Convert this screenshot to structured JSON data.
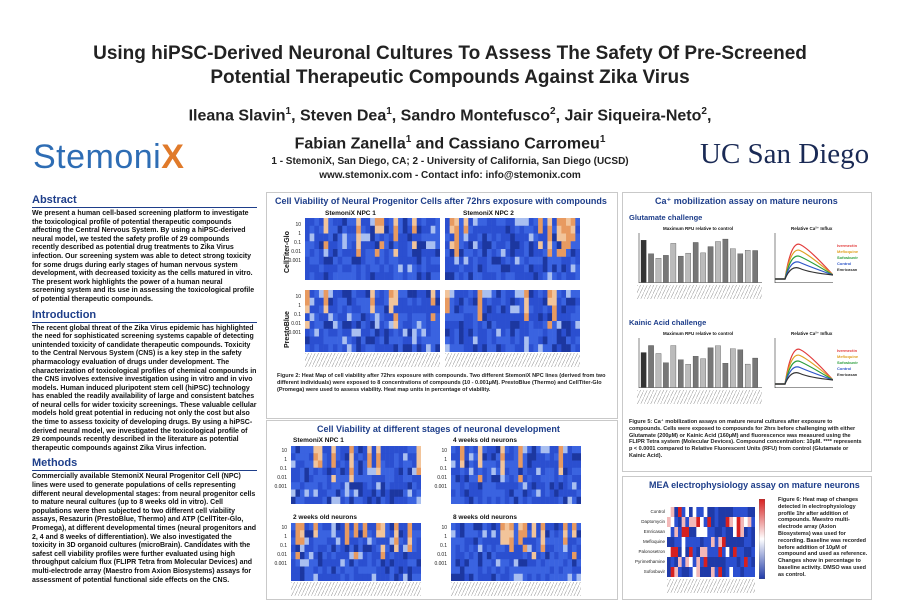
{
  "poster": {
    "title_line1": "Using hiPSC-Derived Neuronal Cultures To Assess The Safety Of Pre-Screened",
    "title_line2": "Potential Therapeutic Compounds Against Zika Virus",
    "authors_line1": [
      "Ileana Slavin",
      "1",
      ", Steven Dea",
      "1",
      ", Sandro Montefusco",
      "2",
      ", Jair Siqueira-Neto",
      "2",
      ","
    ],
    "authors_line2": [
      "Fabian Zanella",
      "1",
      " and Cassiano Carromeu",
      "1"
    ],
    "affiliation_line1": "1 - StemoniX, San Diego, CA; 2 - University of California, San Diego (UCSD)",
    "affiliation_line2": "www.stemonix.com - Contact info: info@stemonix.com",
    "logo_left_a": "Stemoni",
    "logo_left_b": "X",
    "logo_right": "UC San Diego"
  },
  "abstract": {
    "heading": "Abstract",
    "text": "We present a human cell-based screening platform to investigate the toxicological profile of potential therapeutic compounds affecting the Central Nervous System. By using a hiPSC-derived neural model, we tested the safety profile of 29 compounds recently described as potential drug treatments to Zika Virus infection. Our screening system was able to detect strong toxicity for some drugs during early stages of human nervous system development, with decreased toxicity as the cells matured in vitro. The present work highlights the power of a human neural screening system and its use in assessing the toxicological profile of potential therapeutic compounds."
  },
  "introduction": {
    "heading": "Introduction",
    "text": "The recent global threat of the Zika Virus epidemic has highlighted the need for sophisticated screening systems capable of detecting unintended toxicity of candidate therapeutic compounds. Toxicity to the Central Nervous System (CNS) is a key step in the safety pharmacology evaluation of drugs under development. The characterization of toxicological profiles of chemical compounds in the CNS involves extensive investigation using in vitro and in vivo models. Human induced pluripotent stem cell (hiPSC) technology has enabled the readily availability of large and consistent batches of neural cells for wider toxicity screenings. These valuable cellular models hold great potential in reducing not only the cost but also the time to assess toxicity of developing drugs. By using a hiPSC-derived neural model, we investigated the toxicological profile of 29 compounds recently described in the literature as potential therapeutic compounds against Zika Virus infection."
  },
  "methods": {
    "heading": "Methods",
    "text": "Commercially available StemoniX Neural Progenitor Cell (NPC) lines were used to generate populations of cells representing different neural developmental stages: from neural progenitor cells to mature neural cultures (up to 8 weeks old in vitro). Cell populations were then subjected to two different cell viability assays, Resazurin (PrestoBlue, Thermo) and ATP (CellTiter-Glo, Promega), at different developmental times (neural progenitors and 2, 4 and 8 weeks of differentiation). We also investigated the toxicity in 3D organoid cultures (microBrain). Candidates with the safest cell viability profiles were further evaluated using high throughput calcium flux (FLIPR Tetra from Molecular Devices) and multi-electrode array (Maestro from Axion Biosystems) assays for assessment of potential functional side effects on the CNS."
  },
  "npc_panel": {
    "heading": "Cell Viability of Neural Progenitor Cells after 72hrs exposure with compounds",
    "col1": "StemoniX NPC 1",
    "col2": "StemoniX NPC 2",
    "row1": "CellTiter-Glo",
    "row2": "PrestoBlue",
    "ticks": [
      "10",
      "1",
      "0.1",
      "0.01",
      "0.001"
    ],
    "caption": "Figure 2: Heat Map of cell viability after 72hrs exposure with compounds. Two different StemoniX NPC lines (derived from two different individuals) were exposed to 8 concentrations of compounds (10 - 0.001µM). PrestoBlue (Thermo) and CellTiter-Glo (Promega) were used to assess viability. Heat map units in percentage of viability."
  },
  "stages_panel": {
    "heading": "Cell Viability at different stages of neuronal development",
    "labels": [
      "StemoniX NPC 1",
      "4 weeks old neurons",
      "2 weeks old neurons",
      "8 weeks old neurons"
    ],
    "ticks": [
      "10",
      "1",
      "0.1",
      "0.01",
      "0.001"
    ]
  },
  "ca_panel": {
    "heading": "Ca⁺ mobilization assay on mature neurons",
    "sub1": "Glutamate challenge",
    "sub2": "Kainic Acid challenge",
    "bar_title": "Maximum RFU relative to control",
    "curve_title": "Relative Ca²⁺ Influx",
    "legend1": [
      "Ivermectin",
      "Mefloquine",
      "Sofosbuvir",
      "Control",
      "Emricasan"
    ],
    "legend2": [
      "Ivermectin",
      "Mefloquine",
      "Sofosbuvir",
      "Control",
      "Emricasan"
    ],
    "caption": "Figure 5: Ca⁺ mobilization assays on mature neural cultures after exposure to compounds. Cells were exposed to compounds for 2hrs before challenging with either Glutamate (200µM) or Kainic Acid (160µM) and fluorescence was measured using the FLIPR Tetra system (Molecular Devices). Compound concentration: 10µM. **** represents p < 0.0001 compared to Relative Fluorescent Units (RFU) from control (Glutamate or Kainic Acid).",
    "colors": [
      "#e23b3b",
      "#e0a020",
      "#2a9d3a",
      "#2d55c8",
      "#333333"
    ]
  },
  "mea_panel": {
    "heading": "MEA electrophysiology assay on mature neurons",
    "rows": [
      "Control",
      "Daptomycin",
      "Emricasan",
      "Mefloquine",
      "Palonosetron",
      "Pyrimethamine",
      "Sofosbuvir"
    ],
    "caption": "Figure 6: Heat map of changes detected in electrophysiology profile 1hr after addition of compounds. Maestro multi-electrode array (Axion Biosystems) was used for recording. Baseline was recorded before addition of 10µM of compound and used as reference. Changes show in percentage to baseline activity. DMSO was used as control."
  }
}
